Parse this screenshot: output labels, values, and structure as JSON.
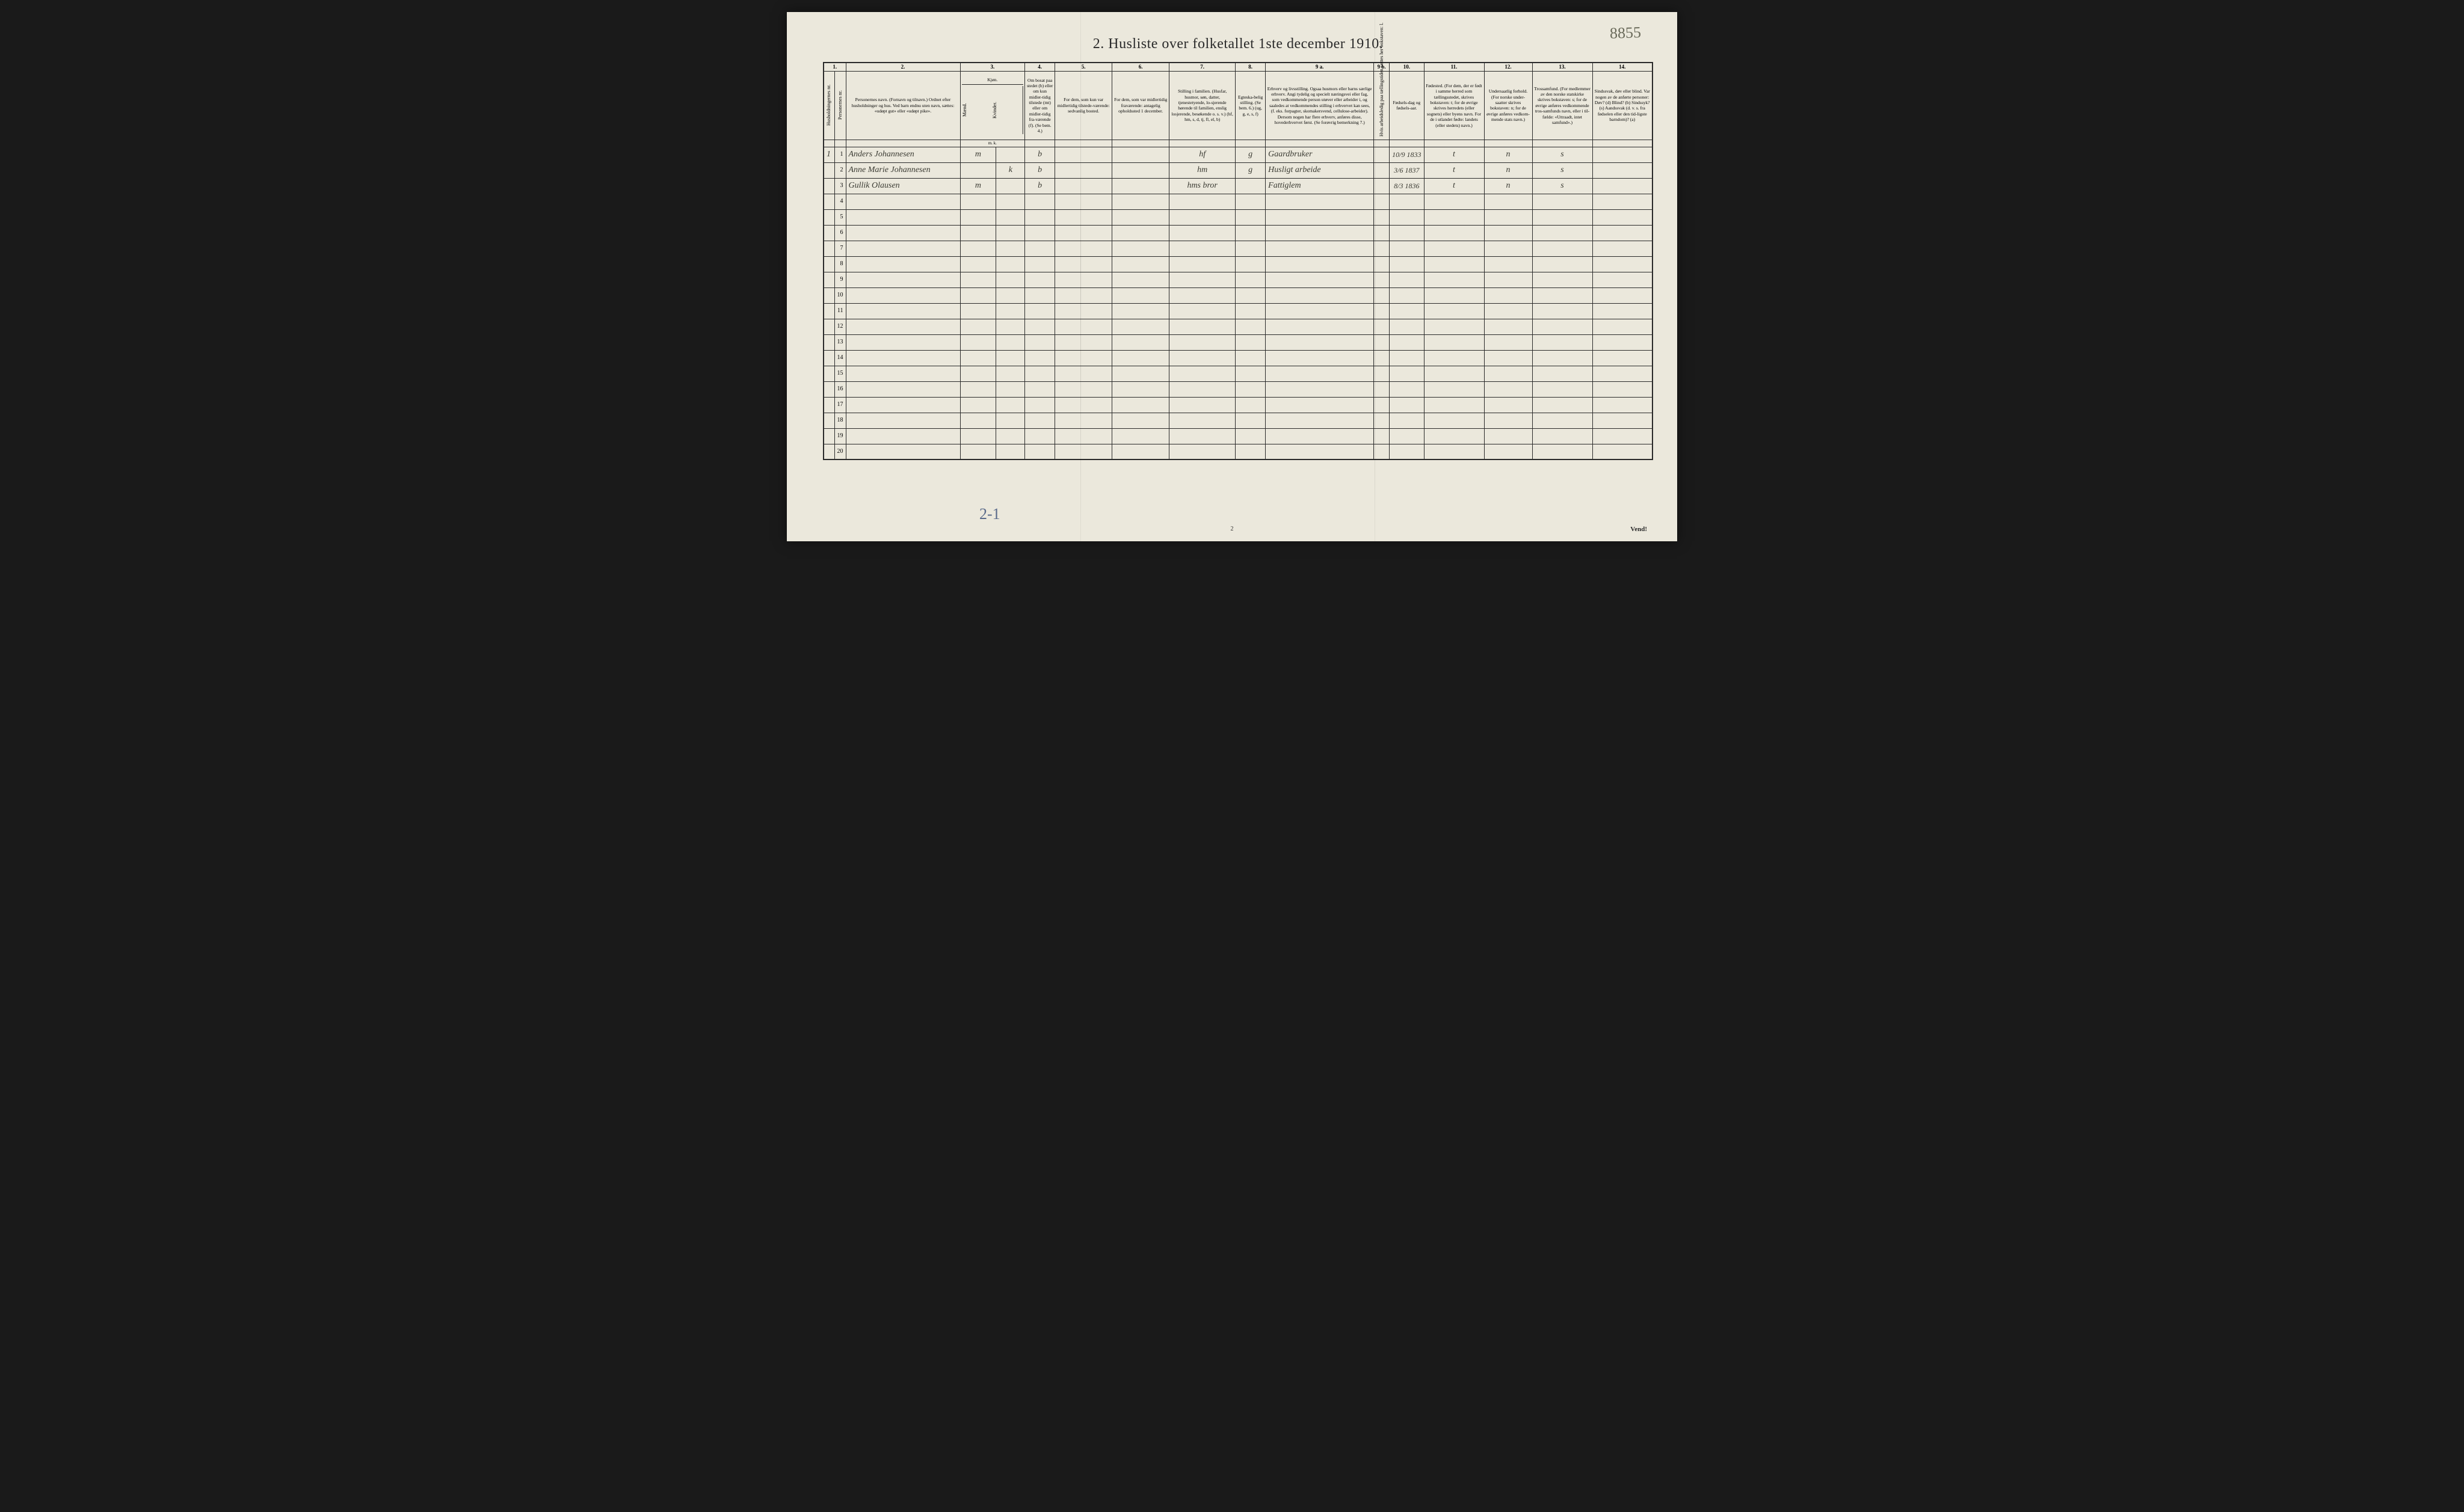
{
  "title": "2.  Husliste over folketallet 1ste december 1910.",
  "handwritten_top_right": "8855",
  "bottom_annotation": "2-1",
  "footer_page_num": "2",
  "vend_text": "Vend!",
  "column_numbers": [
    "1.",
    "2.",
    "3.",
    "4.",
    "5.",
    "6.",
    "7.",
    "8.",
    "9 a.",
    "9 b.",
    "10.",
    "11.",
    "12.",
    "13.",
    "14."
  ],
  "headers": {
    "c1a": "Husholdningernes nr.",
    "c1b": "Personernes nr.",
    "c2": "Personernes navn.\n(Fornavn og tilnavn.)\nOrdnet efter husholdninger og hus.\nVed barn endnu uten navn, sættes: «udøpt gut» eller «udøpt pike».",
    "c3": "Kjøn.",
    "c3a": "Mænd.",
    "c3b": "Kvinder.",
    "c3sub": "m.  k.",
    "c4": "Om bosat paa stedet (b) eller om kun midler-tidig tilstede (mt) eller om midler-tidig fra-værende (f). (Se bem. 4.)",
    "c5": "For dem, som kun var midlertidig tilstede-værende:\n\nsedvanlig bosted.",
    "c6": "For dem, som var midlertidig fraværende:\n\nantagelig opholdssted 1 december.",
    "c7": "Stilling i familien.\n(Husfar, husmor, søn, datter, tjenestetyende, lo-sjerende hørende til familien, enslig losjerende, besøkende o. s. v.)\n(hf, hm, s, d, tj, fl, el, b)",
    "c8": "Egteska-belig stilling. (Se bem. 6.)\n(ug, g, e, s, f)",
    "c9a": "Erhverv og livsstilling.\nOgsaa husmors eller barns særlige erhverv. Angi tydelig og specielt næringsvei eller fag, som vedkommende person utøver eller arbeider i, og saaledes at vedkommendes stilling i erhvervet kan sees, (f. eks. forpagter, skomakersvend, cellulose-arbeider). Dersom nogen har flere erhverv, anføres disse, hovederhvervet først. (Se forøvrig bemerkning 7.)",
    "c9b": "Hvis arbeidsledig paa tællingstiden sættes her bokstaven: l.",
    "c10": "Fødsels-dag og fødsels-aar.",
    "c11": "Fødested.\n(For dem, der er født i samme herred som tællingsstedet, skrives bokstaven: t; for de øvrige skrives herredets (eller sognets) eller byens navn. For de i utlandet fødte: landets (eller stedets) navn.)",
    "c12": "Undersaatlig forhold.\n(For norske under-saatter skrives bokstaven: n; for de øvrige anføres vedkom-mende stats navn.)",
    "c13": "Trossamfund.\n(For medlemmer av den norske statskirke skrives bokstaven: s; for de øvrige anføres vedkommende tros-samfunds navn, eller i til-fælde: «Uttraadt, intet samfund».)",
    "c14": "Sindssvak, døv eller blind.\nVar nogen av de anførte personer:\nDøv?      (d)\nBlind?    (b)\nSindssyk? (s)\nAandssvak (d. v. s. fra fødselen eller den tid-ligste barndom)? (a)"
  },
  "rows": [
    {
      "hh": "1",
      "pn": "1",
      "name": "Anders Johannesen",
      "sex_m": "m",
      "sex_k": "",
      "res": "b",
      "c5": "",
      "c6": "",
      "fam": "hf",
      "mar": "g",
      "occ": "Gaardbruker",
      "c9b": "",
      "born": "10/9 1833",
      "birthpl": "t",
      "nat": "n",
      "rel": "s",
      "c14": ""
    },
    {
      "hh": "",
      "pn": "2",
      "name": "Anne Marie Johannesen",
      "sex_m": "",
      "sex_k": "k",
      "res": "b",
      "c5": "",
      "c6": "",
      "fam": "hm",
      "mar": "g",
      "occ": "Husligt arbeide",
      "c9b": "",
      "born": "3/6 1837",
      "birthpl": "t",
      "nat": "n",
      "rel": "s",
      "c14": ""
    },
    {
      "hh": "",
      "pn": "3",
      "name": "Gullik Olausen",
      "sex_m": "m",
      "sex_k": "",
      "res": "b",
      "c5": "",
      "c6": "",
      "fam": "hms bror",
      "mar": "",
      "occ": "Fattiglem",
      "c9b": "",
      "born": "8/3 1836",
      "birthpl": "t",
      "nat": "n",
      "rel": "s",
      "c14": ""
    }
  ],
  "empty_row_numbers": [
    "4",
    "5",
    "6",
    "7",
    "8",
    "9",
    "10",
    "11",
    "12",
    "13",
    "14",
    "15",
    "16",
    "17",
    "18",
    "19",
    "20"
  ],
  "colors": {
    "page_bg": "#ebe8dc",
    "ink": "#2a2a2a",
    "handwriting": "#3a3a32",
    "pencil_blue": "#5a6a8a"
  }
}
